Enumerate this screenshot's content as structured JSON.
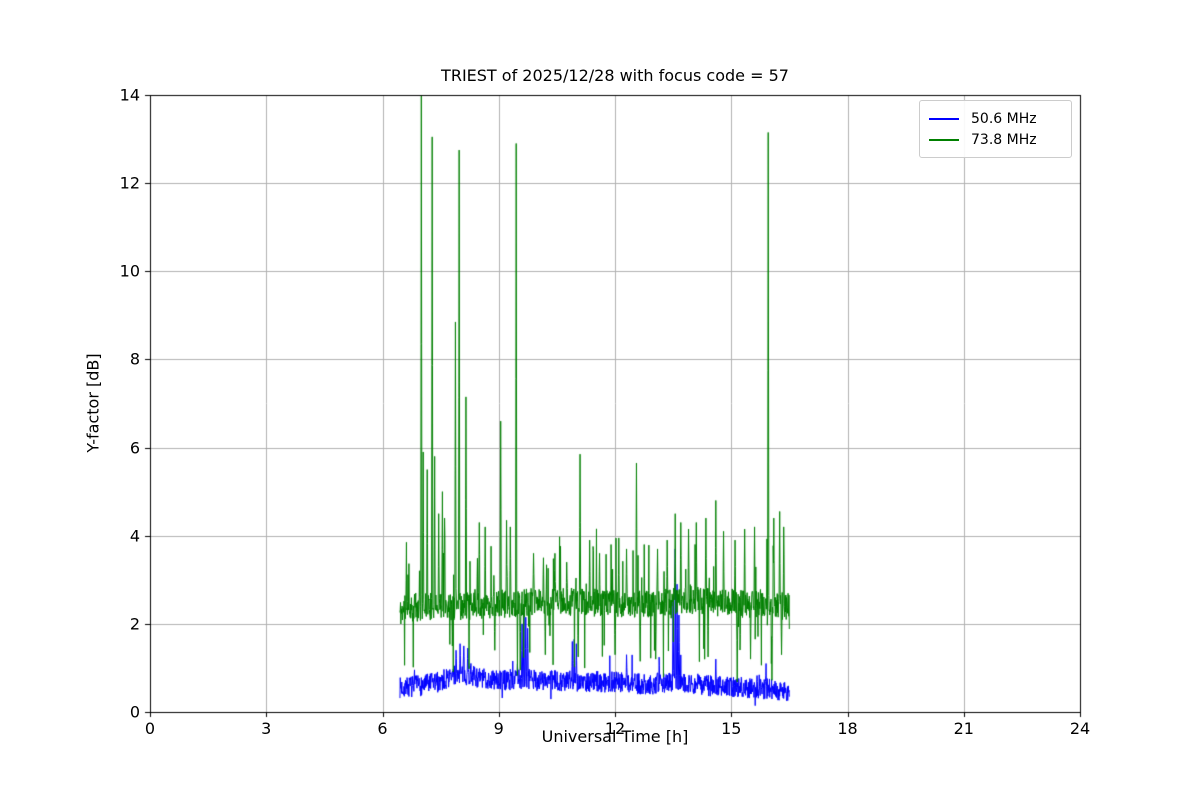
{
  "figure": {
    "background": "#ffffff"
  },
  "chart_data": {
    "type": "line",
    "title": "TRIEST of 2025/12/28 with focus code = 57",
    "xlabel": "Universal Time [h]",
    "ylabel": "Y-factor [dB]",
    "xlim": [
      0,
      24
    ],
    "ylim": [
      0,
      14
    ],
    "xticks": [
      0,
      3,
      6,
      9,
      12,
      15,
      18,
      21,
      24
    ],
    "yticks": [
      0,
      2,
      4,
      6,
      8,
      10,
      12,
      14
    ],
    "grid": true,
    "grid_color": "#b0b0b0",
    "legend": {
      "position": "upper right",
      "entries": [
        {
          "label": "50.6 MHz",
          "color": "#0000ff"
        },
        {
          "label": "73.8 MHz",
          "color": "#008000"
        }
      ]
    },
    "series": [
      {
        "name": "50.6 MHz",
        "color": "#0000ff",
        "t_start": 6.45,
        "t_end": 16.5,
        "dt": 0.008,
        "seed": 7,
        "noise_amp": 0.24,
        "spike_prob": 0.02,
        "spike_max": 0.5,
        "dip_prob": 0.01,
        "dip_max": 0.25,
        "baseline": [
          [
            6.45,
            0.55
          ],
          [
            7.0,
            0.6
          ],
          [
            7.5,
            0.7
          ],
          [
            7.9,
            0.85
          ],
          [
            8.2,
            0.85
          ],
          [
            8.6,
            0.75
          ],
          [
            9.0,
            0.72
          ],
          [
            9.6,
            0.75
          ],
          [
            10.0,
            0.72
          ],
          [
            11.0,
            0.7
          ],
          [
            12.0,
            0.68
          ],
          [
            12.8,
            0.62
          ],
          [
            13.4,
            0.68
          ],
          [
            13.7,
            0.72
          ],
          [
            14.0,
            0.62
          ],
          [
            14.8,
            0.58
          ],
          [
            15.5,
            0.55
          ],
          [
            16.2,
            0.5
          ],
          [
            16.5,
            0.48
          ]
        ],
        "major_spikes": [
          [
            7.9,
            1.4
          ],
          [
            8.0,
            1.55
          ],
          [
            8.1,
            1.5
          ],
          [
            8.2,
            1.45
          ],
          [
            9.6,
            2.0
          ],
          [
            9.65,
            2.25
          ],
          [
            9.7,
            2.15
          ],
          [
            9.75,
            1.9
          ],
          [
            10.9,
            1.6
          ],
          [
            10.95,
            1.65
          ],
          [
            11.0,
            1.55
          ],
          [
            12.3,
            1.3
          ],
          [
            13.5,
            2.6
          ],
          [
            13.55,
            3.7
          ],
          [
            13.6,
            2.9
          ],
          [
            13.65,
            2.2
          ],
          [
            14.6,
            1.2
          ],
          [
            15.9,
            1.1
          ]
        ],
        "major_dips": []
      },
      {
        "name": "73.8 MHz",
        "color": "#008000",
        "t_start": 6.45,
        "t_end": 16.5,
        "dt": 0.008,
        "seed": 11,
        "noise_amp": 0.32,
        "spike_prob": 0.055,
        "spike_max": 1.5,
        "dip_prob": 0.03,
        "dip_max": 1.5,
        "baseline": [
          [
            6.45,
            2.25
          ],
          [
            6.6,
            2.35
          ],
          [
            7.0,
            2.4
          ],
          [
            8.0,
            2.4
          ],
          [
            9.0,
            2.45
          ],
          [
            10.0,
            2.5
          ],
          [
            11.0,
            2.5
          ],
          [
            12.0,
            2.45
          ],
          [
            13.0,
            2.45
          ],
          [
            13.8,
            2.55
          ],
          [
            14.5,
            2.5
          ],
          [
            15.5,
            2.45
          ],
          [
            16.5,
            2.4
          ]
        ],
        "major_spikes": [
          [
            6.62,
            3.85
          ],
          [
            7.0,
            14.2
          ],
          [
            7.05,
            5.9
          ],
          [
            7.15,
            5.5
          ],
          [
            7.28,
            13.05
          ],
          [
            7.35,
            5.8
          ],
          [
            7.45,
            4.5
          ],
          [
            7.55,
            5.0
          ],
          [
            7.6,
            4.4
          ],
          [
            7.88,
            8.85
          ],
          [
            7.98,
            12.75
          ],
          [
            8.15,
            7.15
          ],
          [
            8.5,
            4.3
          ],
          [
            8.65,
            4.2
          ],
          [
            9.05,
            6.6
          ],
          [
            9.2,
            4.35
          ],
          [
            9.3,
            4.2
          ],
          [
            9.45,
            12.9
          ],
          [
            9.9,
            3.6
          ],
          [
            10.15,
            3.5
          ],
          [
            10.45,
            3.6
          ],
          [
            10.75,
            3.4
          ],
          [
            11.1,
            5.85
          ],
          [
            11.35,
            3.9
          ],
          [
            11.6,
            3.6
          ],
          [
            11.9,
            3.8
          ],
          [
            12.1,
            3.95
          ],
          [
            12.3,
            3.7
          ],
          [
            12.55,
            5.65
          ],
          [
            12.75,
            3.8
          ],
          [
            13.1,
            3.7
          ],
          [
            13.35,
            3.9
          ],
          [
            13.55,
            4.5
          ],
          [
            13.7,
            4.3
          ],
          [
            13.9,
            4.15
          ],
          [
            14.1,
            4.3
          ],
          [
            14.35,
            4.4
          ],
          [
            14.6,
            4.8
          ],
          [
            14.8,
            4.1
          ],
          [
            15.1,
            3.9
          ],
          [
            15.35,
            4.15
          ],
          [
            15.6,
            4.2
          ],
          [
            15.95,
            13.15
          ],
          [
            16.1,
            4.4
          ],
          [
            16.25,
            4.55
          ],
          [
            16.35,
            4.2
          ]
        ],
        "major_dips": [
          [
            7.8,
            1.5
          ],
          [
            8.9,
            1.4
          ],
          [
            9.55,
            0.95
          ],
          [
            9.8,
            1.35
          ],
          [
            10.2,
            1.3
          ],
          [
            11.05,
            1.25
          ],
          [
            12.0,
            1.3
          ],
          [
            12.65,
            1.15
          ],
          [
            13.05,
            1.2
          ],
          [
            14.4,
            1.25
          ],
          [
            15.15,
            0.68
          ],
          [
            15.5,
            1.2
          ],
          [
            16.05,
            0.72
          ],
          [
            16.3,
            1.3
          ]
        ]
      }
    ]
  }
}
